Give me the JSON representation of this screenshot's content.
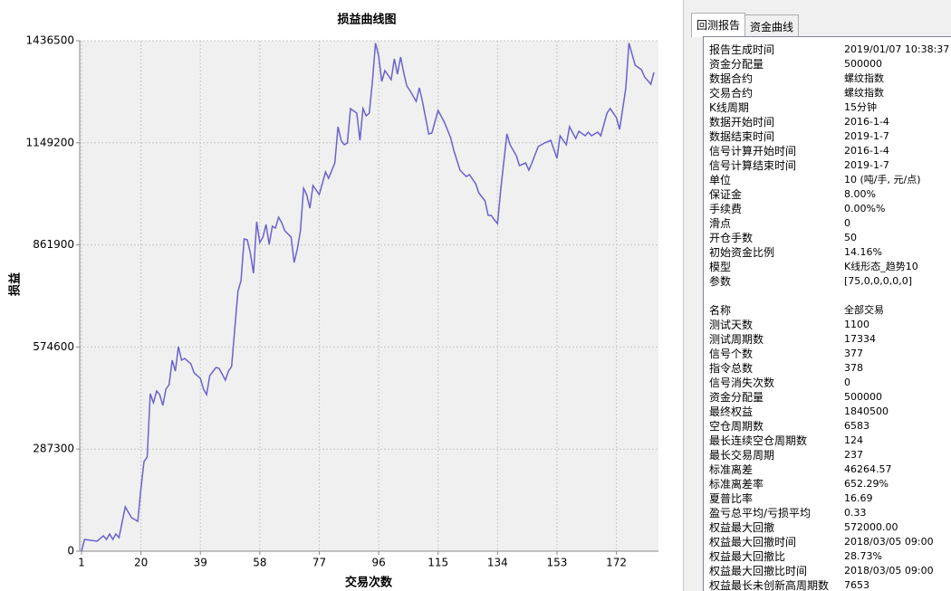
{
  "chart_data": {
    "type": "line",
    "title": "损益曲线图",
    "x_label": "交易次数",
    "y_label": "损益",
    "color": "#6a62cf",
    "x": [
      1,
      2,
      6,
      8,
      9,
      10,
      11,
      12,
      13,
      15,
      17,
      19,
      20,
      21,
      22,
      23,
      24,
      25,
      26,
      27,
      28,
      29,
      30,
      31,
      32,
      33,
      34,
      36,
      37,
      39,
      40,
      41,
      42,
      44,
      45,
      47,
      48,
      49,
      51,
      52,
      53,
      54,
      55,
      56,
      57,
      58,
      59,
      60,
      61,
      62,
      63,
      64,
      65,
      66,
      68,
      69,
      70,
      71,
      72,
      73,
      74,
      75,
      77,
      79,
      80,
      82,
      83,
      84,
      85,
      86,
      87,
      89,
      90,
      91,
      92,
      93,
      94,
      95,
      96,
      97,
      98,
      100,
      101,
      102,
      103,
      104,
      105,
      106,
      108,
      109,
      110,
      112,
      113,
      115,
      117,
      119,
      120,
      122,
      124,
      125,
      127,
      128,
      130,
      131,
      132,
      133,
      134,
      135,
      137,
      138,
      140,
      141,
      143,
      144,
      145,
      147,
      149,
      151,
      153,
      154,
      156,
      157,
      159,
      160,
      162,
      163,
      164,
      166,
      167,
      169,
      170,
      172,
      173,
      175,
      176,
      178,
      180,
      181,
      183,
      184
    ],
    "values": [
      0,
      33000,
      28000,
      43300,
      33000,
      48400,
      33000,
      48400,
      38200,
      124800,
      94200,
      84100,
      175700,
      252200,
      264900,
      443200,
      417700,
      450800,
      440600,
      410100,
      455900,
      468600,
      537400,
      506900,
      575600,
      537400,
      542500,
      527200,
      501800,
      486500,
      455900,
      440600,
      494100,
      517000,
      514500,
      481400,
      506900,
      519600,
      731000,
      761600,
      878700,
      876200,
      838000,
      781900,
      927100,
      868500,
      883800,
      919500,
      863400,
      914400,
      909300,
      939800,
      924600,
      901600,
      883800,
      812500,
      850700,
      901600,
      1021300,
      1003500,
      965300,
      1029000,
      1003500,
      1067200,
      1049400,
      1092700,
      1194500,
      1156300,
      1143600,
      1148700,
      1245500,
      1232700,
      1156300,
      1245500,
      1225100,
      1232700,
      1321900,
      1430000,
      1393200,
      1321900,
      1352500,
      1327000,
      1385600,
      1342300,
      1390700,
      1347400,
      1309200,
      1296400,
      1265900,
      1304100,
      1265900,
      1174200,
      1176700,
      1240400,
      1207300,
      1164000,
      1128300,
      1072300,
      1054500,
      1059600,
      1034100,
      1008600,
      985700,
      944900,
      944900,
      932200,
      922000,
      1016300,
      1174200,
      1143600,
      1113000,
      1085000,
      1092700,
      1072300,
      1092700,
      1138500,
      1148700,
      1156300,
      1105400,
      1169100,
      1143600,
      1194500,
      1161400,
      1181800,
      1169100,
      1179300,
      1169100,
      1179300,
      1169100,
      1232700,
      1245500,
      1220000,
      1186900,
      1304100,
      1430000,
      1367700,
      1355000,
      1334600,
      1314300,
      1347400
    ],
    "xlim": [
      0,
      185
    ],
    "ylim": [
      0,
      1436500
    ],
    "xticks": [
      1,
      20,
      39,
      58,
      77,
      96,
      115,
      134,
      153,
      172
    ],
    "yticks": [
      0,
      287300,
      574600,
      861900,
      1149200,
      1436500
    ],
    "grid": true
  },
  "report": {
    "tabs": [
      "回测报告",
      "资金曲线"
    ],
    "sections": [
      {
        "rows": [
          [
            "报告生成时间",
            "2019/01/07 10:38:37"
          ],
          [
            "资金分配量",
            "500000"
          ],
          [
            "数据合约",
            "螺纹指数"
          ],
          [
            "交易合约",
            "螺纹指数"
          ],
          [
            "K线周期",
            "15分钟"
          ],
          [
            "数据开始时间",
            "2016-1-4"
          ],
          [
            "数据结束时间",
            "2019-1-7"
          ],
          [
            "信号计算开始时间",
            "2016-1-4"
          ],
          [
            "信号计算结束时间",
            "2019-1-7"
          ],
          [
            "单位",
            "10 (吨/手, 元/点)"
          ],
          [
            "保证金",
            "8.00%"
          ],
          [
            "手续费",
            "0.00%%"
          ],
          [
            "滑点",
            "0"
          ],
          [
            "开仓手数",
            "50"
          ],
          [
            "初始资金比例",
            "14.16%"
          ],
          [
            "模型",
            "K线形态_趋势10"
          ],
          [
            "参数",
            "[75,0,0,0,0,0]"
          ]
        ]
      },
      {
        "rows": [
          [
            "名称",
            "全部交易"
          ],
          [
            "测试天数",
            "1100"
          ],
          [
            "测试周期数",
            "17334"
          ],
          [
            "信号个数",
            "377"
          ],
          [
            "指令总数",
            "378"
          ],
          [
            "信号消失次数",
            "0"
          ],
          [
            "资金分配量",
            "500000"
          ],
          [
            "最终权益",
            "1840500"
          ],
          [
            "空仓周期数",
            "6583"
          ],
          [
            "最长连续空仓周期数",
            "124"
          ],
          [
            "最长交易周期",
            "237"
          ],
          [
            "标准离差",
            "46264.57"
          ],
          [
            "标准离差率",
            "652.29%"
          ],
          [
            "夏普比率",
            "16.69"
          ],
          [
            "盈亏总平均/亏损平均",
            "0.33"
          ],
          [
            "权益最大回撤",
            "572000.00"
          ],
          [
            "权益最大回撤时间",
            "2018/03/05 09:00"
          ],
          [
            "权益最大回撤比",
            "28.73%"
          ],
          [
            "权益最大回撤比时间",
            "2018/03/05 09:00"
          ],
          [
            "权益最长未创新高周期数",
            "7653"
          ]
        ]
      }
    ]
  }
}
